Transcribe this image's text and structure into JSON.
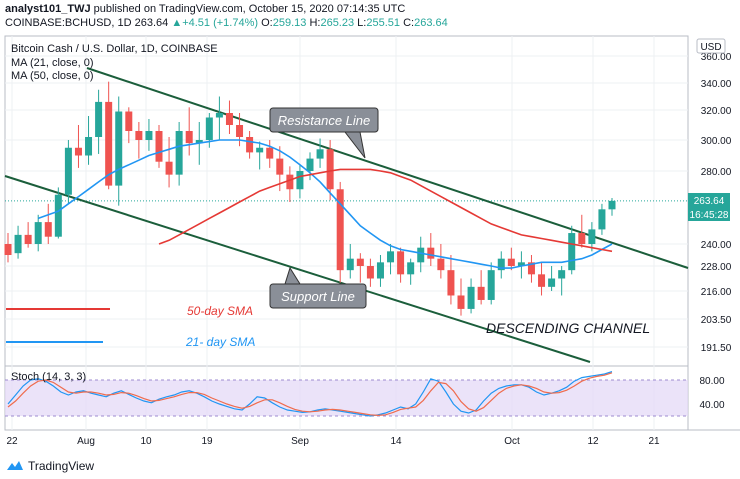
{
  "header": {
    "author": "analyst101_TWJ",
    "published_text": "published on TradingView.com, October 15, 2020 07:14:35 UTC",
    "symbol": "COINBASE:BCHUSD, 1D",
    "last": "263.64",
    "change_icon": "triangle-up-icon",
    "change": "+4.51 (+1.74%)",
    "o_label": "O:",
    "o": "259.13",
    "h_label": "H:",
    "h": "265.23",
    "l_label": "L:",
    "l": "255.51",
    "c_label": "C:",
    "c": "263.64"
  },
  "legend": {
    "title": "Bitcoin Cash / U.S. Dollar, 1D, COINBASE",
    "ma21": "MA (21, close, 0)",
    "ma50": "MA (50, close, 0)"
  },
  "annotations": {
    "resistance": "Resistance Line",
    "support": "Support Line",
    "channel": "DESCENDING CHANNEL",
    "sma50": "50-day SMA",
    "sma21": "21- day SMA"
  },
  "currency_button": "USD",
  "price_badge": "263.64",
  "countdown_badge": "16:45:28",
  "stoch_label": "Stoch (14, 3, 3)",
  "footer": {
    "brand": "TradingView",
    "logo_icon": "tradingview-logo-icon"
  },
  "colors": {
    "bull": "#26a69a",
    "bear": "#ef5350",
    "ma21": "#2196f3",
    "ma50": "#e53935",
    "channel": "#1b5e3b",
    "stoch_k": "#2196f3",
    "stoch_d": "#ef6c4e",
    "stoch_band": "#e4d9f7"
  },
  "chart_data": {
    "type": "candlestick",
    "title": "Bitcoin Cash / U.S. Dollar, 1D, COINBASE",
    "x_tick_labels": [
      "22",
      "Aug",
      "10",
      "19",
      "Sep",
      "14",
      "Oct",
      "12",
      "21"
    ],
    "y_tick_labels": [
      360,
      340,
      320,
      300,
      280,
      240,
      228,
      216,
      203.5,
      191.5
    ],
    "ylim": [
      185,
      365
    ],
    "ohlc": [
      [
        240,
        246,
        230,
        234
      ],
      [
        235,
        250,
        232,
        245
      ],
      [
        245,
        252,
        238,
        240
      ],
      [
        240,
        256,
        236,
        252
      ],
      [
        252,
        262,
        240,
        244
      ],
      [
        244,
        271,
        243,
        267
      ],
      [
        267,
        300,
        262,
        295
      ],
      [
        295,
        310,
        282,
        290
      ],
      [
        290,
        316,
        284,
        302
      ],
      [
        302,
        335,
        291,
        326
      ],
      [
        326,
        341,
        270,
        272
      ],
      [
        272,
        330,
        261,
        319
      ],
      [
        319,
        322,
        298,
        306
      ],
      [
        306,
        312,
        288,
        300
      ],
      [
        300,
        314,
        293,
        306
      ],
      [
        306,
        310,
        282,
        286
      ],
      [
        286,
        302,
        271,
        278
      ],
      [
        278,
        312,
        272,
        306
      ],
      [
        306,
        322,
        290,
        298
      ],
      [
        298,
        312,
        284,
        300
      ],
      [
        300,
        318,
        295,
        315
      ],
      [
        315,
        330,
        300,
        318
      ],
      [
        318,
        327,
        304,
        310
      ],
      [
        310,
        318,
        296,
        302
      ],
      [
        302,
        306,
        288,
        292
      ],
      [
        292,
        299,
        281,
        295
      ],
      [
        295,
        300,
        282,
        288
      ],
      [
        288,
        296,
        269,
        278
      ],
      [
        278,
        283,
        263,
        270
      ],
      [
        270,
        284,
        265,
        280
      ],
      [
        280,
        292,
        275,
        288
      ],
      [
        288,
        301,
        282,
        294
      ],
      [
        294,
        300,
        264,
        270
      ],
      [
        270,
        274,
        220,
        226
      ],
      [
        226,
        240,
        222,
        232
      ],
      [
        232,
        235,
        220,
        228
      ],
      [
        228,
        232,
        218,
        222
      ],
      [
        222,
        234,
        218,
        230
      ],
      [
        230,
        240,
        224,
        236
      ],
      [
        236,
        238,
        220,
        224
      ],
      [
        224,
        232,
        219,
        230
      ],
      [
        230,
        244,
        225,
        238
      ],
      [
        238,
        246,
        228,
        232
      ],
      [
        232,
        240,
        222,
        226
      ],
      [
        226,
        234,
        210,
        214
      ],
      [
        214,
        222,
        205,
        208
      ],
      [
        208,
        222,
        206,
        218
      ],
      [
        218,
        226,
        210,
        212
      ],
      [
        212,
        230,
        210,
        226
      ],
      [
        226,
        236,
        222,
        232
      ],
      [
        232,
        238,
        226,
        228
      ],
      [
        228,
        236,
        222,
        230
      ],
      [
        230,
        234,
        220,
        224
      ],
      [
        224,
        230,
        214,
        218
      ],
      [
        218,
        228,
        216,
        222
      ],
      [
        222,
        228,
        214,
        226
      ],
      [
        226,
        250,
        224,
        246
      ],
      [
        246,
        256,
        238,
        240
      ],
      [
        240,
        252,
        236,
        248
      ],
      [
        248,
        262,
        245,
        259
      ],
      [
        259,
        265.23,
        255.51,
        263.64
      ]
    ],
    "ma21": [
      254,
      256,
      258,
      262,
      266,
      270,
      274,
      278,
      281,
      284,
      287,
      290,
      292,
      294,
      296,
      297,
      298,
      299,
      300,
      300,
      300,
      299,
      298,
      296,
      293,
      289,
      284,
      279,
      274,
      268,
      262,
      256,
      250,
      246,
      242,
      239,
      237,
      236,
      235,
      234,
      233,
      232,
      231,
      230,
      229,
      228,
      227,
      227,
      228,
      229,
      230,
      230,
      230,
      231,
      232,
      234,
      237,
      240
    ],
    "ma50": [
      240,
      242,
      245,
      248,
      251,
      254,
      257,
      260,
      263,
      266,
      269,
      271,
      273,
      275,
      277,
      278,
      279,
      280,
      281,
      281,
      281,
      281,
      280,
      279,
      277,
      275,
      272,
      269,
      266,
      263,
      260,
      257,
      254,
      251,
      249,
      247,
      245,
      244,
      243,
      242,
      241,
      240,
      239,
      238,
      237,
      236
    ],
    "stoch": {
      "name": "Stoch (14, 3, 3)",
      "ylim": [
        0,
        100
      ],
      "levels": [
        80,
        20
      ],
      "tick_labels": [
        80.0,
        40.0
      ],
      "k": [
        40,
        55,
        70,
        80,
        82,
        78,
        70,
        60,
        55,
        60,
        62,
        58,
        55,
        52,
        58,
        62,
        56,
        50,
        45,
        42,
        48,
        52,
        55,
        60,
        62,
        58,
        52,
        45,
        40,
        36,
        32,
        30,
        40,
        52,
        50,
        42,
        35,
        30,
        28,
        26,
        27,
        30,
        32,
        30,
        28,
        26,
        24,
        22,
        20,
        22,
        25,
        30,
        35,
        32,
        40,
        60,
        82,
        78,
        60,
        40,
        28,
        25,
        30,
        45,
        58,
        66,
        70,
        72,
        72,
        68,
        60,
        55,
        58,
        62,
        68,
        78,
        84,
        86,
        88,
        90,
        94
      ],
      "d": [
        35,
        45,
        58,
        70,
        78,
        80,
        76,
        68,
        60,
        58,
        60,
        60,
        58,
        55,
        56,
        59,
        58,
        54,
        49,
        45,
        46,
        49,
        52,
        56,
        59,
        59,
        56,
        50,
        45,
        40,
        36,
        33,
        36,
        42,
        47,
        47,
        42,
        36,
        31,
        28,
        27,
        28,
        30,
        31,
        30,
        28,
        26,
        24,
        22,
        21,
        22,
        26,
        31,
        33,
        35,
        46,
        62,
        76,
        74,
        62,
        44,
        32,
        28,
        34,
        46,
        58,
        66,
        70,
        72,
        70,
        66,
        60,
        58,
        59,
        63,
        70,
        78,
        83,
        86,
        88,
        92
      ]
    }
  }
}
